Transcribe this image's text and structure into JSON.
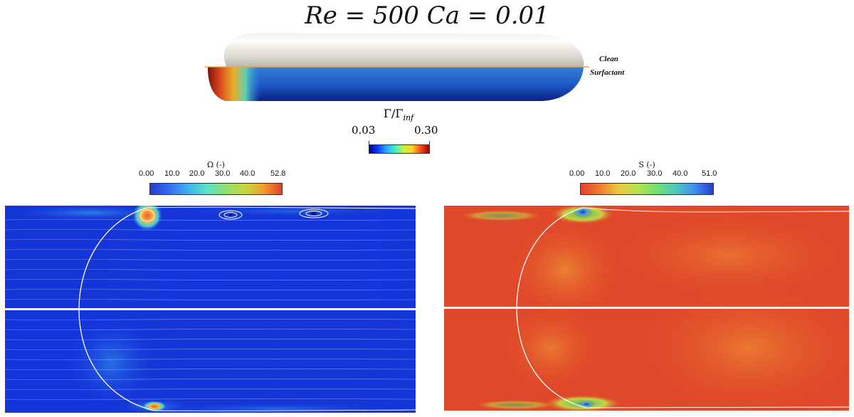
{
  "title": "Re = 500 Ca = 0.01",
  "bubble": {
    "label_clean": "Clean",
    "label_surfactant": "Surfactant",
    "colorbar": {
      "title": "Γ/Γ_inf",
      "title_main": "Γ/Γ",
      "title_sub": "inf",
      "min": "0.03",
      "max": "0.30"
    }
  },
  "vorticity_panel": {
    "colorbar": {
      "title": "Ω (-)",
      "ticks": [
        "0.00",
        "10.0",
        "20.0",
        "30.0",
        "40.0",
        "52.8"
      ]
    }
  },
  "strain_panel": {
    "colorbar": {
      "title": "S (-)",
      "ticks": [
        "0.00",
        "10.0",
        "20.0",
        "30.0",
        "40.0",
        "51.0"
      ]
    }
  },
  "colors": {
    "jet_low": "#1b2fd8",
    "jet_high": "#d7261e",
    "interface": "#f2a23a",
    "background": "#ffffff"
  }
}
